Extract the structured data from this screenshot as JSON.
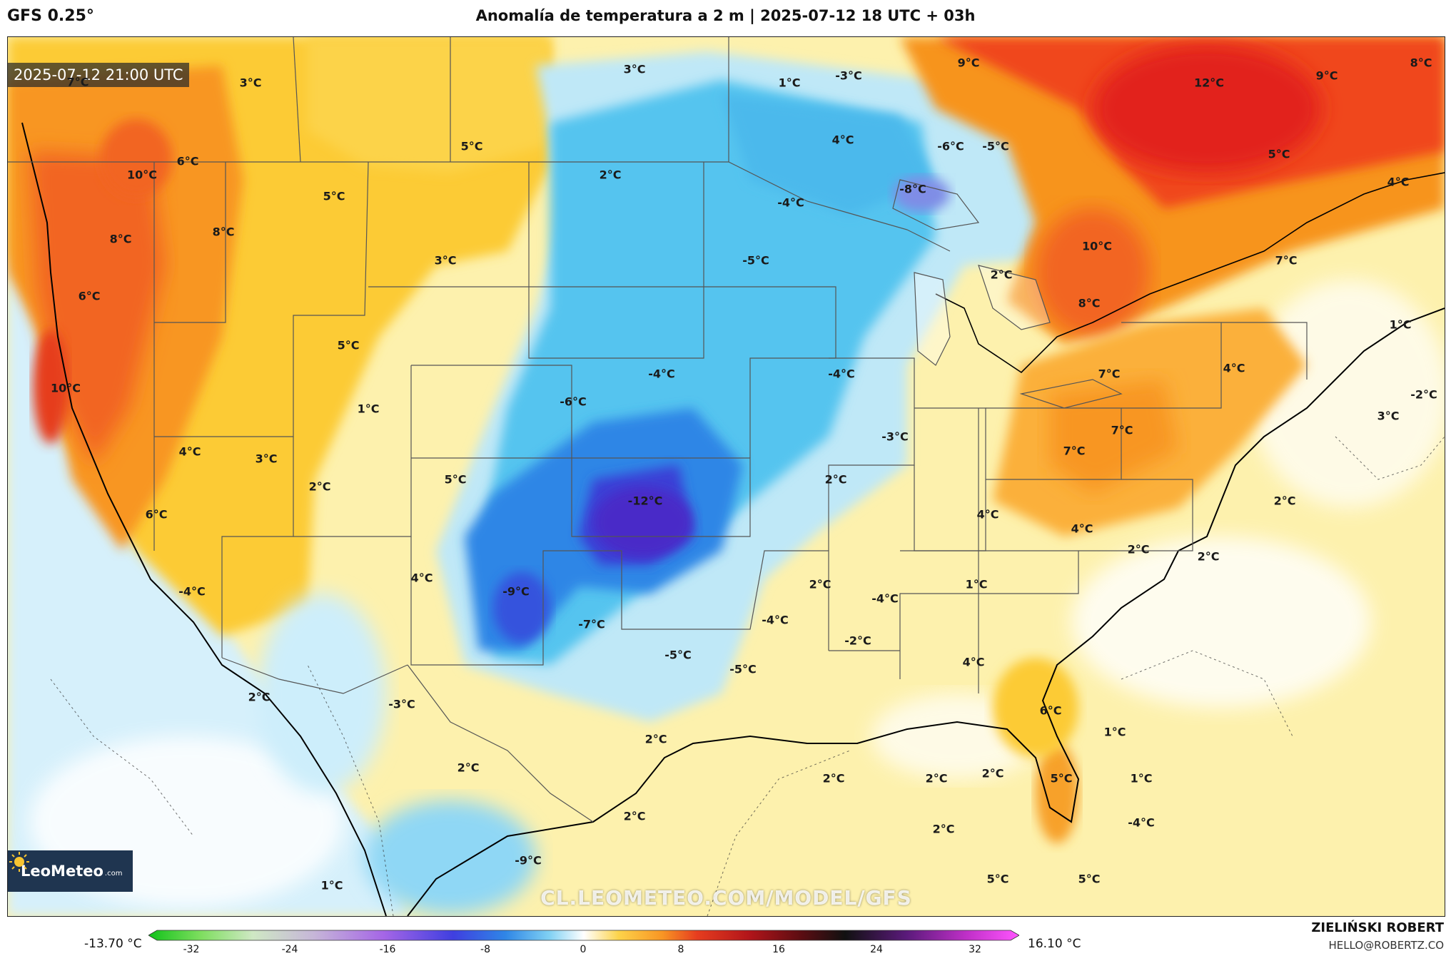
{
  "header": {
    "model": "GFS 0.25°",
    "title": "Anomalía de temperatura a 2 m | 2025-07-12 18 UTC + 03h"
  },
  "map": {
    "timestamp": "2025-07-12 21:00 UTC",
    "labels": [
      "7°C",
      "3°C",
      "3°C",
      "1°C",
      "-3°C",
      "9°C",
      "12°C",
      "9°C",
      "8°C",
      "5°C",
      "4°C",
      "-6°C",
      "-5°C",
      "5°C",
      "6°C",
      "10°C",
      "2°C",
      "5°C",
      "-4°C",
      "-8°C",
      "4°C",
      "8°C",
      "8°C",
      "3°C",
      "-5°C",
      "10°C",
      "2°C",
      "7°C",
      "6°C",
      "5°C",
      "1°C",
      "8°C",
      "-4°C",
      "-4°C",
      "-6°C",
      "4°C",
      "10°C",
      "1°C",
      "7°C",
      "-2°C",
      "3°C",
      "4°C",
      "3°C",
      "-3°C",
      "7°C",
      "7°C",
      "2°C",
      "5°C",
      "-12°C",
      "2°C",
      "2°C",
      "6°C",
      "4°C",
      "4°C",
      "2°C",
      "2°C",
      "4°C",
      "-9°C",
      "-7°C",
      "2°C",
      "1°C",
      "-4°C",
      "-4°C",
      "-4°C",
      "-2°C",
      "-5°C",
      "-5°C",
      "4°C",
      "2°C",
      "-3°C",
      "6°C",
      "2°C",
      "1°C",
      "2°C",
      "2°C",
      "2°C",
      "2°C",
      "5°C",
      "1°C",
      "2°C",
      "2°C",
      "-4°C",
      "-9°C",
      "1°C",
      "5°C",
      "5°C"
    ],
    "brand": {
      "name": "LeoMeteo",
      "suffix": ".com"
    },
    "watermark": "CL.LEOMETEO.COM/MODEL/GFS"
  },
  "colorbar": {
    "min_label": "-13.70 °C",
    "max_label": "16.10 °C",
    "range": [
      -32,
      32
    ],
    "ticks": [
      "-32",
      "-24",
      "-16",
      "-8",
      "0",
      "8",
      "16",
      "24",
      "32"
    ]
  },
  "footer": {
    "author": "ZIELIŃSKI ROBERT",
    "email": "HELLO@ROBERTZ.CO"
  }
}
